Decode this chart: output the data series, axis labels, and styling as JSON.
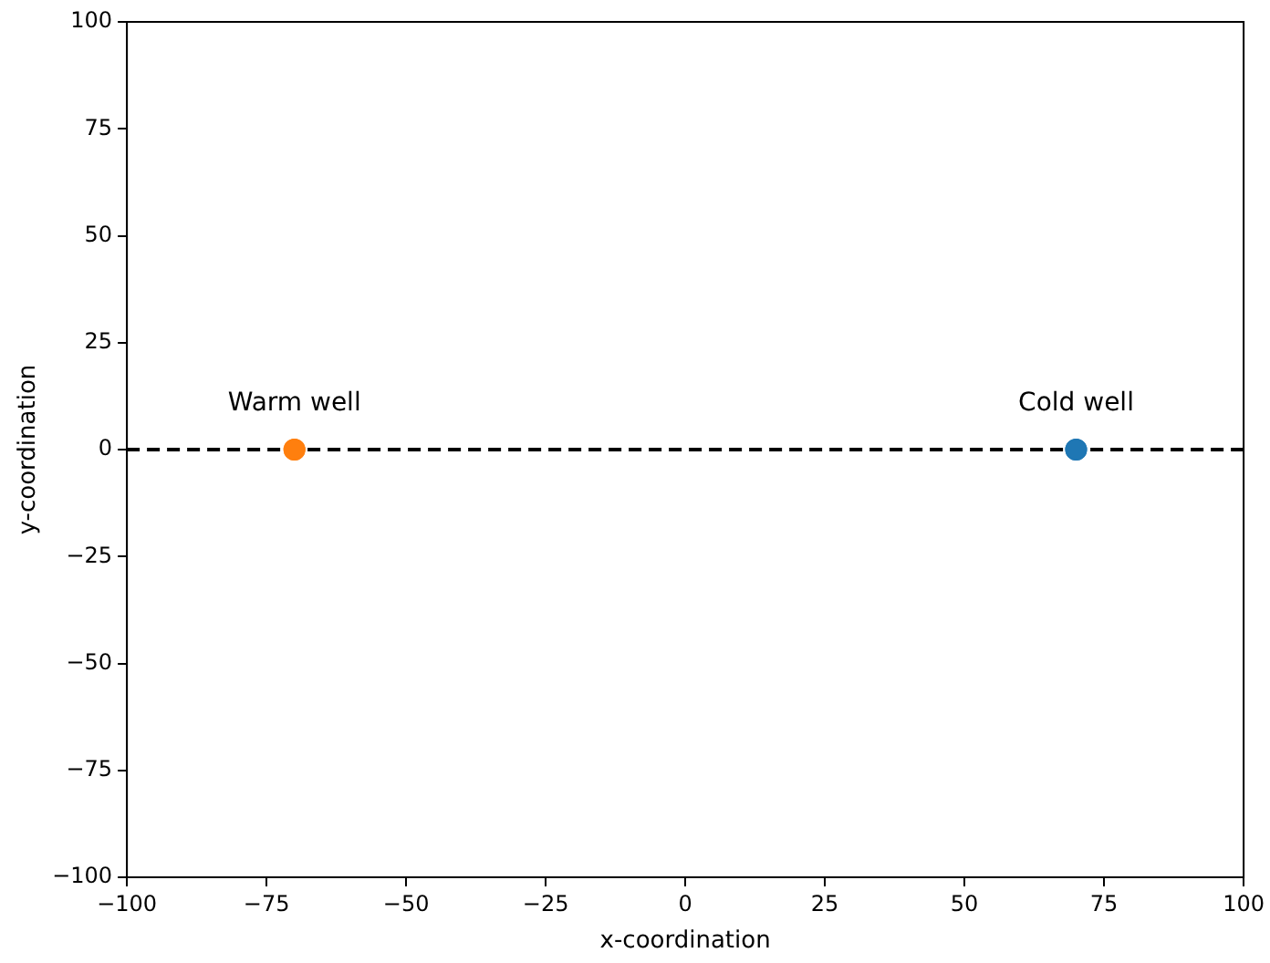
{
  "chart_data": {
    "type": "scatter",
    "xlabel": "x-coordination",
    "ylabel": "y-coordination",
    "xlim": [
      -100,
      100
    ],
    "ylim": [
      -100,
      100
    ],
    "xticks": [
      {
        "value": -100,
        "label": "−100"
      },
      {
        "value": -75,
        "label": "−75"
      },
      {
        "value": -50,
        "label": "−50"
      },
      {
        "value": -25,
        "label": "−25"
      },
      0,
      25,
      50,
      75,
      100
    ],
    "yticks": [
      {
        "value": -100,
        "label": "−100"
      },
      {
        "value": -75,
        "label": "−75"
      },
      {
        "value": -50,
        "label": "−50"
      },
      {
        "value": -25,
        "label": "−25"
      },
      0,
      25,
      50,
      75,
      100
    ],
    "grid": false,
    "legend": false,
    "marker": "circle",
    "series": [
      {
        "name": "Cold well",
        "color": "#1f77b4",
        "x": [
          70
        ],
        "values": [
          0
        ]
      },
      {
        "name": "Warm well",
        "color": "#ff7f0e",
        "x": [
          -70
        ],
        "values": [
          0
        ]
      }
    ],
    "ref_lines": [
      {
        "axis": "y",
        "value": 0,
        "color": "#000000",
        "line_style": "dashed"
      }
    ]
  }
}
